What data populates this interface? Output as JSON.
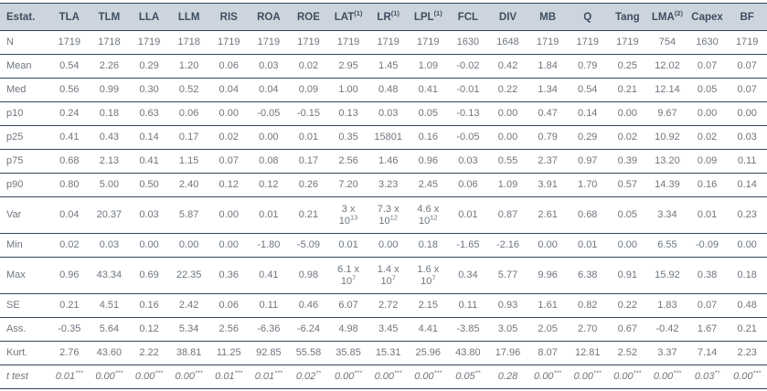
{
  "colors": {
    "header_bg": "#ccd5de",
    "header_text": "#3e4e5f",
    "body_text": "#6e767f",
    "line": "#34465a"
  },
  "table": {
    "header": [
      {
        "label": "Estat."
      },
      {
        "label": "TLA"
      },
      {
        "label": "TLM"
      },
      {
        "label": "LLA"
      },
      {
        "label": "LLM"
      },
      {
        "label": "RIS"
      },
      {
        "label": "ROA"
      },
      {
        "label": "ROE"
      },
      {
        "label": "LAT",
        "sup": "(1)"
      },
      {
        "label": "LR",
        "sup": "(1)"
      },
      {
        "label": "LPL",
        "sup": "(1)"
      },
      {
        "label": "FCL"
      },
      {
        "label": "DIV"
      },
      {
        "label": "MB"
      },
      {
        "label": "Q"
      },
      {
        "label": "Tang"
      },
      {
        "label": "LMA",
        "sup": "(2)"
      },
      {
        "label": "Capex"
      },
      {
        "label": "BF"
      }
    ],
    "rows": [
      {
        "label": "N",
        "cells": [
          "1719",
          "1718",
          "1719",
          "1718",
          "1719",
          "1719",
          "1719",
          "1719",
          "1719",
          "1719",
          "1630",
          "1648",
          "1719",
          "1719",
          "1719",
          "754",
          "1630",
          "1719"
        ]
      },
      {
        "label": "Mean",
        "cells": [
          "0.54",
          "2.26",
          "0.29",
          "1.20",
          "0.06",
          "0.03",
          "0.02",
          "2.95",
          "1.45",
          "1.09",
          "-0.02",
          "0.42",
          "1.84",
          "0.79",
          "0.25",
          "12.02",
          "0.07",
          "0.07"
        ]
      },
      {
        "label": "Med",
        "cells": [
          "0.56",
          "0.99",
          "0.30",
          "0.52",
          "0.04",
          "0.04",
          "0.09",
          "1.00",
          "0.48",
          "0.41",
          "-0.01",
          "0.22",
          "1.34",
          "0.54",
          "0.21",
          "12.14",
          "0.05",
          "0.07"
        ]
      },
      {
        "label": "p10",
        "cells": [
          "0.24",
          "0.18",
          "0.63",
          "0.06",
          "0.00",
          "-0.05",
          "-0.15",
          "0.13",
          "0.03",
          "0.05",
          "-0.13",
          "0.00",
          "0.47",
          "0.14",
          "0.00",
          "9.67",
          "0.00",
          "0.00"
        ]
      },
      {
        "label": "p25",
        "cells": [
          "0.41",
          "0.43",
          "0.14",
          "0.17",
          "0.02",
          "0.00",
          "0.01",
          "0.35",
          "15801",
          "0.16",
          "-0.05",
          "0.00",
          "0.79",
          "0.29",
          "0.02",
          "10.92",
          "0.02",
          "0.03"
        ]
      },
      {
        "label": "p75",
        "cells": [
          "0.68",
          "2.13",
          "0.41",
          "1.15",
          "0.07",
          "0.08",
          "0.17",
          "2.56",
          "1.46",
          "0.96",
          "0.03",
          "0.55",
          "2.37",
          "0.97",
          "0.39",
          "13.20",
          "0.09",
          "0.11"
        ]
      },
      {
        "label": "p90",
        "cells": [
          "0.80",
          "5.00",
          "0.50",
          "2.40",
          "0.12",
          "0.12",
          "0.26",
          "7.20",
          "3.23",
          "2.45",
          "0.06",
          "1.09",
          "3.91",
          "1.70",
          "0.57",
          "14.39",
          "0.16",
          "0.14"
        ]
      },
      {
        "label": "Var",
        "cells": [
          "0.04",
          "20.37",
          "0.03",
          "5.87",
          "0.00",
          "0.01",
          "0.21",
          {
            "sci": [
              "3 x",
              "13"
            ]
          },
          {
            "sci": [
              "7.3 x",
              "12"
            ]
          },
          {
            "sci": [
              "4.6 x",
              "12"
            ]
          },
          "0.01",
          "0.87",
          "2.61",
          "0.68",
          "0.05",
          "3.34",
          "0.01",
          "0.23"
        ]
      },
      {
        "label": "Min",
        "cells": [
          "0.02",
          "0.03",
          "0.00",
          "0.00",
          "0.00",
          "-1.80",
          "-5.09",
          "0.01",
          "0.00",
          "0.18",
          "-1.65",
          "-2.16",
          "0.00",
          "0.01",
          "0.00",
          "6.55",
          "-0.09",
          "0.00"
        ]
      },
      {
        "label": "Max",
        "cells": [
          "0.96",
          "43.34",
          "0.69",
          "22.35",
          "0.36",
          "0.41",
          "0.98",
          {
            "sci": [
              "6.1 x",
              "7"
            ]
          },
          {
            "sci": [
              "1.4 x",
              "7"
            ]
          },
          {
            "sci": [
              "1.6 x",
              "7"
            ]
          },
          "0.34",
          "5.77",
          "9.96",
          "6.38",
          "0.91",
          "15.92",
          "0.38",
          "0.18"
        ]
      },
      {
        "label": "SE",
        "cells": [
          "0.21",
          "4.51",
          "0.16",
          "2.42",
          "0.06",
          "0.11",
          "0.46",
          "6.07",
          "2.72",
          "2.15",
          "0.11",
          "0.93",
          "1.61",
          "0.82",
          "0.22",
          "1.83",
          "0.07",
          "0.48"
        ]
      },
      {
        "label": "Ass.",
        "cells": [
          "-0.35",
          "5.64",
          "0.12",
          "5.34",
          "2.56",
          "-6.36",
          "-6.24",
          "4.98",
          "3.45",
          "4.41",
          "-3.85",
          "3.05",
          "2.05",
          "2.70",
          "0.67",
          "-0.42",
          "1.67",
          "0.21"
        ]
      },
      {
        "label": "Kurt.",
        "cells": [
          "2.76",
          "43.60",
          "2.22",
          "38.81",
          "11.25",
          "92.85",
          "55.58",
          "35.85",
          "15.31",
          "25.96",
          "43.80",
          "17.96",
          "8.07",
          "12.81",
          "2.52",
          "3.37",
          "7.14",
          "2.23"
        ]
      },
      {
        "label": "t test",
        "italic": true,
        "cells": [
          {
            "v": "0.01",
            "sup": "***"
          },
          {
            "v": "0.00",
            "sup": "***"
          },
          {
            "v": "0.00",
            "sup": "***"
          },
          {
            "v": "0.00",
            "sup": "***"
          },
          {
            "v": "0.01",
            "sup": "***"
          },
          {
            "v": "0.01",
            "sup": "***"
          },
          {
            "v": "0.02",
            "sup": "**"
          },
          {
            "v": "0.00",
            "sup": "***"
          },
          {
            "v": "0.00",
            "sup": "***"
          },
          {
            "v": "0.00",
            "sup": "***"
          },
          {
            "v": "0.05",
            "sup": "**"
          },
          "0.28",
          {
            "v": "0.00",
            "sup": "***"
          },
          {
            "v": "0.00",
            "sup": "***"
          },
          {
            "v": "0.00",
            "sup": "***"
          },
          {
            "v": "0.00",
            "sup": "***"
          },
          {
            "v": "0.03",
            "sup": "**"
          },
          {
            "v": "0.00",
            "sup": "***"
          }
        ]
      }
    ]
  }
}
